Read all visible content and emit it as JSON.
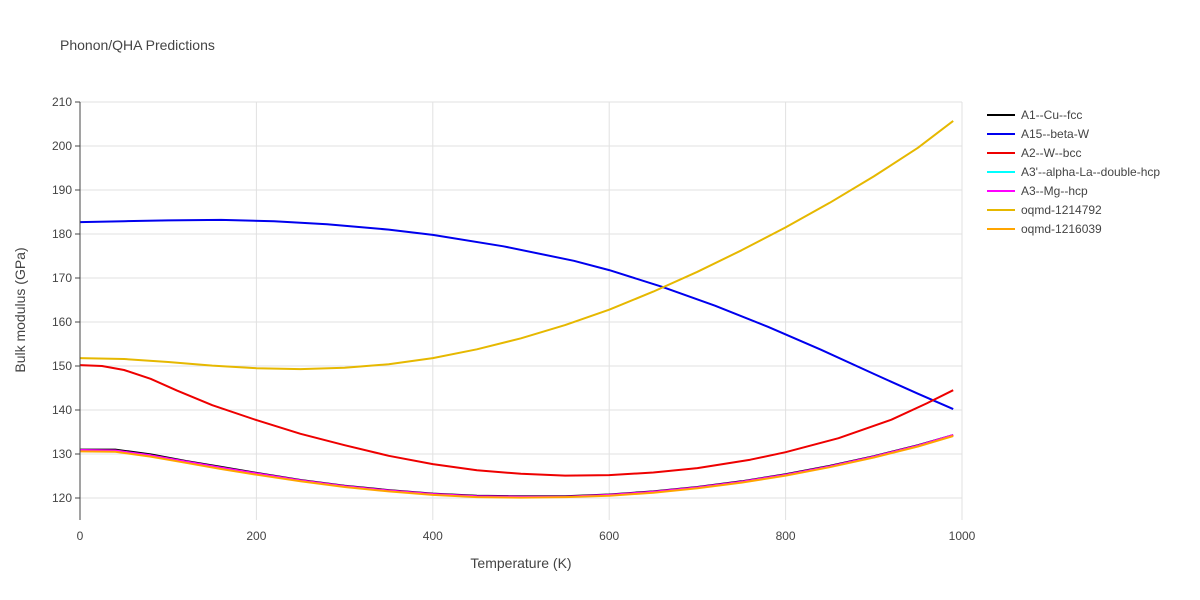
{
  "chart_data": {
    "type": "line",
    "title": "Phonon/QHA Predictions",
    "xlabel": "Temperature (K)",
    "ylabel": "Bulk modulus (GPa)",
    "xlim": [
      0,
      1000
    ],
    "ylim": [
      115,
      210
    ],
    "xticks": [
      0,
      200,
      400,
      600,
      800,
      1000
    ],
    "yticks": [
      120,
      130,
      140,
      150,
      160,
      170,
      180,
      190,
      200,
      210
    ],
    "grid": true,
    "legend_position": "right",
    "series": [
      {
        "name": "A1--Cu--fcc",
        "color": "#000000",
        "x": [
          0,
          40,
          80,
          120,
          160,
          200,
          250,
          300,
          350,
          400,
          450,
          500,
          550,
          600,
          650,
          700,
          750,
          800,
          850,
          900,
          950,
          990
        ],
        "y": [
          131.0,
          131.0,
          129.9,
          128.4,
          127.1,
          125.7,
          124.1,
          122.8,
          121.8,
          121.0,
          120.5,
          120.4,
          120.4,
          120.8,
          121.5,
          122.5,
          123.8,
          125.4,
          127.3,
          129.5,
          132.0,
          134.3
        ]
      },
      {
        "name": "A15--beta-W",
        "color": "#0000ee",
        "x": [
          0,
          50,
          100,
          160,
          220,
          280,
          350,
          400,
          480,
          560,
          600,
          660,
          720,
          780,
          840,
          900,
          950,
          990
        ],
        "y": [
          182.7,
          182.9,
          183.1,
          183.2,
          182.9,
          182.2,
          181.0,
          179.8,
          177.2,
          173.9,
          171.8,
          168.0,
          163.7,
          158.9,
          153.7,
          148.2,
          143.7,
          140.2
        ]
      },
      {
        "name": "A2--W--bcc",
        "color": "#ee0000",
        "x": [
          0,
          25,
          50,
          80,
          110,
          150,
          200,
          250,
          300,
          350,
          400,
          450,
          500,
          550,
          600,
          650,
          700,
          760,
          800,
          860,
          920,
          960,
          990
        ],
        "y": [
          150.2,
          150.0,
          149.1,
          147.1,
          144.4,
          141.1,
          137.7,
          134.6,
          132.0,
          129.6,
          127.7,
          126.3,
          125.5,
          125.1,
          125.2,
          125.8,
          126.8,
          128.7,
          130.4,
          133.6,
          137.8,
          141.5,
          144.5
        ]
      },
      {
        "name": "A3'--alpha-La--double-hcp",
        "color": "#00ffff",
        "x": [],
        "y": []
      },
      {
        "name": "A3--Mg--hcp",
        "color": "#ff00ff",
        "x": [
          0,
          40,
          80,
          120,
          160,
          200,
          250,
          300,
          350,
          400,
          450,
          500,
          550,
          600,
          650,
          700,
          750,
          800,
          850,
          900,
          950,
          990
        ],
        "y": [
          130.9,
          130.8,
          129.7,
          128.3,
          126.9,
          125.6,
          124.0,
          122.7,
          121.7,
          120.9,
          120.4,
          120.3,
          120.3,
          120.7,
          121.4,
          122.4,
          123.7,
          125.3,
          127.2,
          129.4,
          131.9,
          134.3
        ]
      },
      {
        "name": "oqmd-1214792",
        "color": "#e6b800",
        "x": [
          0,
          50,
          100,
          150,
          200,
          250,
          300,
          350,
          400,
          450,
          500,
          550,
          600,
          650,
          700,
          750,
          800,
          850,
          900,
          950,
          990
        ],
        "y": [
          151.8,
          151.6,
          150.9,
          150.1,
          149.5,
          149.3,
          149.6,
          150.4,
          151.8,
          153.8,
          156.3,
          159.3,
          162.8,
          166.9,
          171.4,
          176.3,
          181.5,
          187.1,
          193.1,
          199.6,
          205.7
        ]
      },
      {
        "name": "oqmd-1216039",
        "color": "#ffa500",
        "x": [
          0,
          40,
          80,
          120,
          160,
          200,
          250,
          300,
          350,
          400,
          450,
          500,
          550,
          600,
          650,
          700,
          750,
          800,
          850,
          900,
          950,
          990
        ],
        "y": [
          130.6,
          130.5,
          129.4,
          128.0,
          126.6,
          125.3,
          123.8,
          122.5,
          121.5,
          120.7,
          120.2,
          120.1,
          120.2,
          120.5,
          121.2,
          122.2,
          123.5,
          125.1,
          127.0,
          129.2,
          131.7,
          134.1
        ]
      }
    ]
  }
}
